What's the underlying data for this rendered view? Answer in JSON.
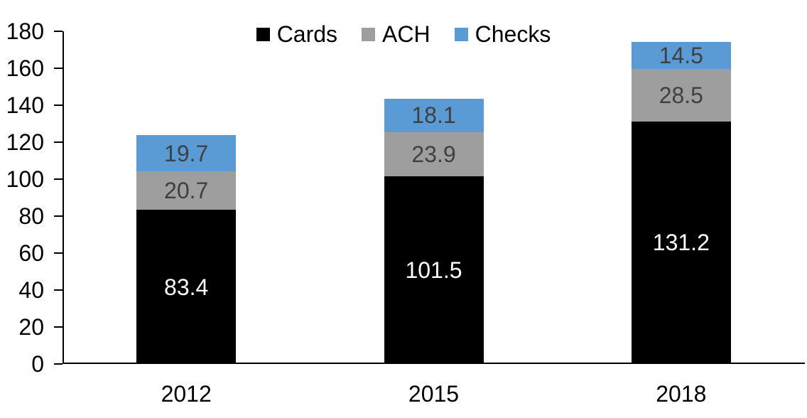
{
  "chart_data": {
    "type": "bar",
    "stacked": true,
    "title": "",
    "categories": [
      "2012",
      "2015",
      "2018"
    ],
    "series": [
      {
        "name": "Cards",
        "color": "#000000",
        "label_color": "#ffffff",
        "values": [
          83.4,
          101.5,
          131.2
        ]
      },
      {
        "name": "ACH",
        "color": "#9E9E9E",
        "label_color": "#404040",
        "values": [
          20.7,
          23.9,
          28.5
        ]
      },
      {
        "name": "Checks",
        "color": "#5B9BD5",
        "label_color": "#404040",
        "values": [
          19.7,
          18.1,
          14.5
        ]
      }
    ],
    "stack_order_bottom_to_top": [
      "Cards",
      "ACH",
      "Checks"
    ],
    "totals": [
      123.8,
      143.5,
      174.2
    ],
    "ylim": [
      0,
      180
    ],
    "ytick_step": 20,
    "yticks": [
      0,
      20,
      40,
      60,
      80,
      100,
      120,
      140,
      160,
      180
    ],
    "value_decimals": 1,
    "legend_position": "top-center",
    "grid": false,
    "axis_color": "#000000",
    "background_color": "#ffffff"
  }
}
